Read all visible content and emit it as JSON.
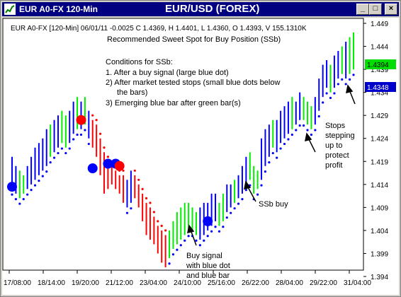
{
  "window": {
    "title": "EUR A0-FX 120-Min",
    "chart_title": "EUR/USD (FOREX)",
    "buttons": {
      "minimize": "_",
      "maximize": "□",
      "close": "×"
    }
  },
  "header": {
    "info_line": "EUR A0-FX [120-Min] 06/01/11  -0.0025 C 1.4369, H 1.4401, L 1.4360, O 1.4393, V 155.1310K",
    "subtitle": "Recommended Sweet Spot for Buy Position (SSb)"
  },
  "conditions": {
    "heading": "Conditions for SSb:",
    "line1": "1. After a buy signal (large blue dot)",
    "line2": "2) After market tested stops (small blue dots below",
    "line2b": "the bars)",
    "line3": "3) Emerging blue bar after green bar(s)"
  },
  "annotations": {
    "ssb_buy": "SSb buy",
    "buy_signal": [
      "Buy signal",
      "with blue dot",
      "and blue bar"
    ],
    "stops": [
      "Stops",
      "stepping",
      "up to",
      "protect",
      "profit"
    ]
  },
  "price_tags": {
    "upper": "1.4394",
    "lower": "1.4348"
  },
  "colors": {
    "up": "#0000ff",
    "down": "#ff0000",
    "neutral": "#00ee00",
    "tag_green": "#00dd00",
    "tag_blue": "#0000cc",
    "title_bar": "#000080"
  },
  "chart_data": {
    "type": "bar",
    "y_ticks": [
      "1.449",
      "1.444",
      "1.439",
      "1.434",
      "1.429",
      "1.424",
      "1.419",
      "1.414",
      "1.409",
      "1.404",
      "1.399",
      "1.394"
    ],
    "x_ticks": [
      "17/08:00",
      "18/14:00",
      "19/20:00",
      "21/12:00",
      "23/04:00",
      "24/10:00",
      "25/16:00",
      "26/22:00",
      "28/04:00",
      "29/22:00",
      "31/04:00"
    ],
    "ylim": [
      1.394,
      1.449
    ],
    "grid": false,
    "bars": [
      [
        1.413,
        1.42,
        1,
        "b"
      ],
      [
        1.412,
        1.418,
        2,
        "b"
      ],
      [
        1.411,
        1.417,
        3,
        "g"
      ],
      [
        1.412,
        1.416,
        4,
        "g"
      ],
      [
        1.413,
        1.418,
        5,
        "b"
      ],
      [
        1.414,
        1.42,
        6,
        "b"
      ],
      [
        1.415,
        1.422,
        7,
        "b"
      ],
      [
        1.416,
        1.423,
        8,
        "b"
      ],
      [
        1.417,
        1.424,
        9,
        "b"
      ],
      [
        1.418,
        1.426,
        10,
        "b"
      ],
      [
        1.42,
        1.427,
        11,
        "g"
      ],
      [
        1.421,
        1.428,
        12,
        "b"
      ],
      [
        1.422,
        1.429,
        13,
        "b"
      ],
      [
        1.423,
        1.43,
        14,
        "g"
      ],
      [
        1.422,
        1.429,
        15,
        "g"
      ],
      [
        1.423,
        1.43,
        16,
        "b"
      ],
      [
        1.425,
        1.432,
        17,
        "b"
      ],
      [
        1.426,
        1.433,
        18,
        "g"
      ],
      [
        1.426,
        1.432,
        19,
        "b"
      ],
      [
        1.427,
        1.433,
        20,
        "g"
      ],
      [
        1.424,
        1.43,
        21,
        "b"
      ],
      [
        1.422,
        1.428,
        22,
        "r"
      ],
      [
        1.42,
        1.427,
        23,
        "r"
      ],
      [
        1.416,
        1.424,
        24,
        "r"
      ],
      [
        1.412,
        1.421,
        25,
        "r"
      ],
      [
        1.413,
        1.419,
        26,
        "r"
      ],
      [
        1.414,
        1.418,
        27,
        "r"
      ],
      [
        1.413,
        1.417,
        28,
        "r"
      ],
      [
        1.412,
        1.416,
        29,
        "r"
      ],
      [
        1.41,
        1.416,
        30,
        "r"
      ],
      [
        1.409,
        1.415,
        31,
        "b"
      ],
      [
        1.41,
        1.417,
        32,
        "b"
      ],
      [
        1.411,
        1.416,
        33,
        "r"
      ],
      [
        1.409,
        1.414,
        34,
        "r"
      ],
      [
        1.406,
        1.412,
        35,
        "r"
      ],
      [
        1.403,
        1.41,
        36,
        "r"
      ],
      [
        1.402,
        1.409,
        37,
        "r"
      ],
      [
        1.401,
        1.407,
        38,
        "r"
      ],
      [
        1.399,
        1.405,
        39,
        "r"
      ],
      [
        1.397,
        1.404,
        40,
        "r"
      ],
      [
        1.396,
        1.403,
        41,
        "r"
      ],
      [
        1.398,
        1.404,
        42,
        "g"
      ],
      [
        1.4,
        1.406,
        43,
        "g"
      ],
      [
        1.401,
        1.408,
        44,
        "g"
      ],
      [
        1.402,
        1.409,
        45,
        "g"
      ],
      [
        1.403,
        1.41,
        46,
        "g"
      ],
      [
        1.404,
        1.41,
        47,
        "g"
      ],
      [
        1.404,
        1.409,
        48,
        "g"
      ],
      [
        1.403,
        1.408,
        49,
        "g"
      ],
      [
        1.402,
        1.409,
        50,
        "b"
      ],
      [
        1.403,
        1.41,
        51,
        "b"
      ],
      [
        1.404,
        1.41,
        52,
        "b"
      ],
      [
        1.405,
        1.412,
        53,
        "b"
      ],
      [
        1.406,
        1.412,
        54,
        "b"
      ],
      [
        1.405,
        1.41,
        55,
        "g"
      ],
      [
        1.406,
        1.412,
        56,
        "g"
      ],
      [
        1.408,
        1.414,
        57,
        "b"
      ],
      [
        1.409,
        1.414,
        58,
        "b"
      ],
      [
        1.41,
        1.415,
        59,
        "g"
      ],
      [
        1.411,
        1.416,
        60,
        "b"
      ],
      [
        1.412,
        1.418,
        61,
        "b"
      ],
      [
        1.414,
        1.42,
        62,
        "b"
      ],
      [
        1.415,
        1.421,
        63,
        "g"
      ],
      [
        1.412,
        1.418,
        64,
        "g"
      ],
      [
        1.413,
        1.417,
        65,
        "g"
      ],
      [
        1.415,
        1.424,
        66,
        "b"
      ],
      [
        1.418,
        1.426,
        67,
        "b"
      ],
      [
        1.42,
        1.427,
        68,
        "b"
      ],
      [
        1.422,
        1.428,
        69,
        "g"
      ],
      [
        1.421,
        1.428,
        70,
        "b"
      ],
      [
        1.423,
        1.43,
        71,
        "b"
      ],
      [
        1.424,
        1.431,
        72,
        "b"
      ],
      [
        1.425,
        1.432,
        73,
        "b"
      ],
      [
        1.426,
        1.433,
        74,
        "g"
      ],
      [
        1.427,
        1.432,
        75,
        "b"
      ],
      [
        1.428,
        1.434,
        76,
        "b"
      ],
      [
        1.428,
        1.433,
        77,
        "g"
      ],
      [
        1.427,
        1.432,
        78,
        "g"
      ],
      [
        1.426,
        1.431,
        79,
        "g"
      ],
      [
        1.427,
        1.433,
        80,
        "b"
      ],
      [
        1.43,
        1.437,
        81,
        "b"
      ],
      [
        1.433,
        1.44,
        82,
        "b"
      ],
      [
        1.435,
        1.441,
        83,
        "b"
      ],
      [
        1.434,
        1.44,
        84,
        "g"
      ],
      [
        1.435,
        1.442,
        85,
        "b"
      ],
      [
        1.437,
        1.443,
        86,
        "b"
      ],
      [
        1.438,
        1.444,
        87,
        "g"
      ],
      [
        1.437,
        1.445,
        88,
        "b"
      ],
      [
        1.438,
        1.446,
        89,
        "g"
      ],
      [
        1.439,
        1.447,
        90,
        "g"
      ]
    ],
    "buy_signals": [
      [
        1,
        1.4135
      ],
      [
        22,
        1.4175
      ],
      [
        26,
        1.4185
      ],
      [
        28,
        1.4185
      ],
      [
        52,
        1.406
      ]
    ],
    "sell_signals": [
      [
        19,
        1.428
      ],
      [
        29,
        1.418
      ]
    ]
  }
}
